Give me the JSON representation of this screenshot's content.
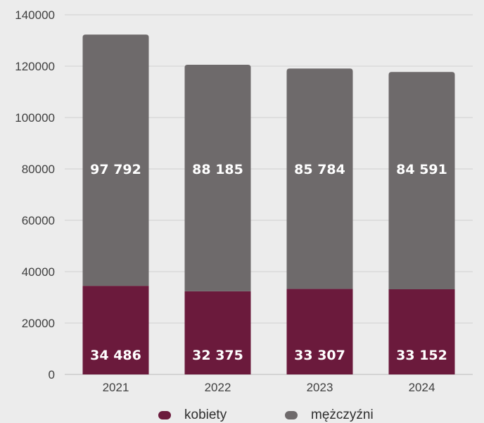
{
  "chart_data": {
    "type": "bar",
    "stacked": true,
    "categories": [
      "2021",
      "2022",
      "2023",
      "2024"
    ],
    "series": [
      {
        "name": "kobiety",
        "color": "#6b1a3c",
        "values": [
          34486,
          32375,
          33307,
          33152
        ],
        "labels": [
          "34 486",
          "32 375",
          "33 307",
          "33 152"
        ]
      },
      {
        "name": "mężczyźni",
        "color": "#6e6a6b",
        "values": [
          97792,
          88185,
          85784,
          84591
        ],
        "labels": [
          "97 792",
          "88 185",
          "85 784",
          "84 591"
        ]
      }
    ],
    "ylim": [
      0,
      140000
    ],
    "yticks": [
      "0",
      "20000",
      "40000",
      "60000",
      "80000",
      "100000",
      "120000",
      "140000"
    ],
    "grid": true,
    "legend_position": "bottom"
  }
}
